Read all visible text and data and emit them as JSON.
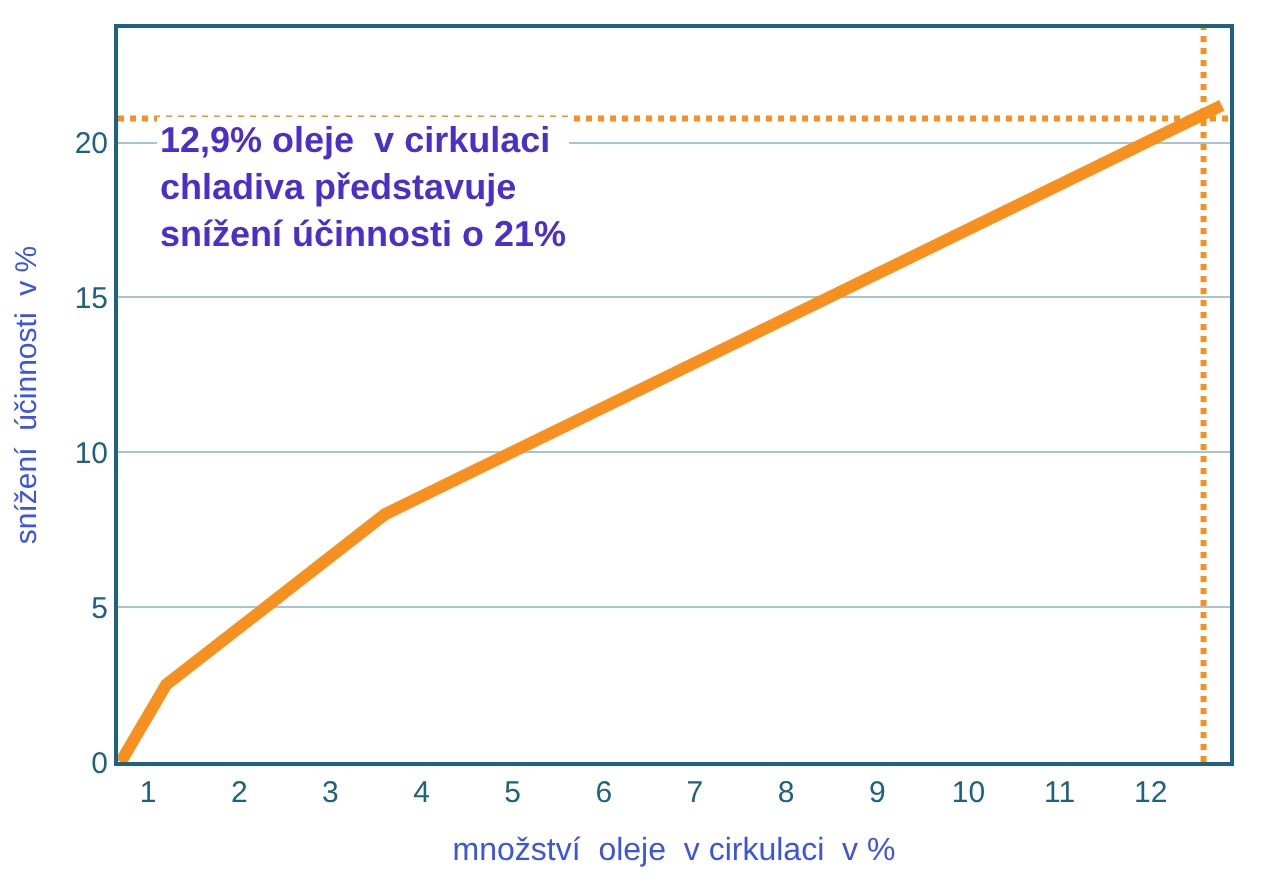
{
  "chart_data": {
    "type": "line",
    "xlabel": "množství  oleje  v cirkulaci  v %",
    "ylabel": "snížení  účinnosti  v %",
    "x": [
      0.7,
      1.2,
      3.6,
      12.78
    ],
    "series": [
      {
        "color": "#f7901e",
        "values": [
          0,
          2.5,
          8.0,
          21.2
        ]
      }
    ],
    "xlim": [
      0.67,
      12.87
    ],
    "xticks": [
      1,
      2,
      3,
      4,
      5,
      6,
      7,
      8,
      9,
      10,
      11,
      12
    ],
    "ylim": [
      0,
      23.7
    ],
    "yticks": [
      0,
      5,
      10,
      15,
      20
    ],
    "grid": "y",
    "marker": "none",
    "line_style": "solid",
    "ref_lines": [
      {
        "axis": "y",
        "value": 20.78,
        "color": "#f7901e",
        "line_style": "dotted"
      },
      {
        "axis": "x",
        "value": 12.58,
        "color": "#f7901e",
        "line_style": "dotted"
      }
    ],
    "annotations": [
      "12,9% oleje  v cirkulaci\nchladiva představuje\nsnížení účinnosti o 21%"
    ]
  }
}
